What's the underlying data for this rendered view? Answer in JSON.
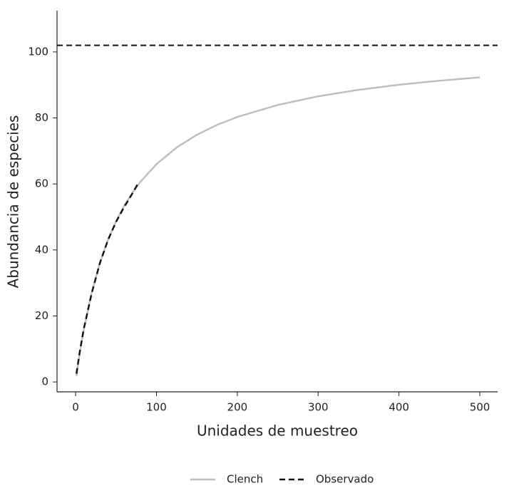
{
  "chart_data": {
    "type": "line",
    "x_label": "Unidades de muestreo",
    "y_label": "Abundancia de especies",
    "xlim": [
      -23,
      522
    ],
    "xticks": [
      0,
      100,
      200,
      300,
      400,
      500
    ],
    "ylim": [
      -3,
      112.5
    ],
    "yticks": [
      0,
      20,
      40,
      60,
      80,
      100
    ],
    "hline": 102,
    "series": [
      {
        "name": "Clench",
        "color": "#bdbdbd",
        "dashed": false,
        "x": [
          1,
          5,
          10,
          20,
          30,
          40,
          50,
          60,
          70,
          80,
          100,
          125,
          150,
          175,
          200,
          250,
          300,
          350,
          400,
          450,
          500
        ],
        "values": [
          1.82,
          8.5,
          15.7,
          27.22,
          36.05,
          43.02,
          48.67,
          53.34,
          57.26,
          60.61,
          66.0,
          71.06,
          74.89,
          77.89,
          80.3,
          83.93,
          86.55,
          88.51,
          90.05,
          91.28,
          92.29
        ]
      },
      {
        "name": "Observado",
        "color": "#111111",
        "dashed": true,
        "x": [
          1,
          5,
          10,
          20,
          30,
          40,
          50,
          60,
          70,
          78
        ],
        "values": [
          2.5,
          9,
          16,
          27,
          36,
          43,
          48.5,
          53,
          57,
          60.5
        ]
      }
    ]
  }
}
